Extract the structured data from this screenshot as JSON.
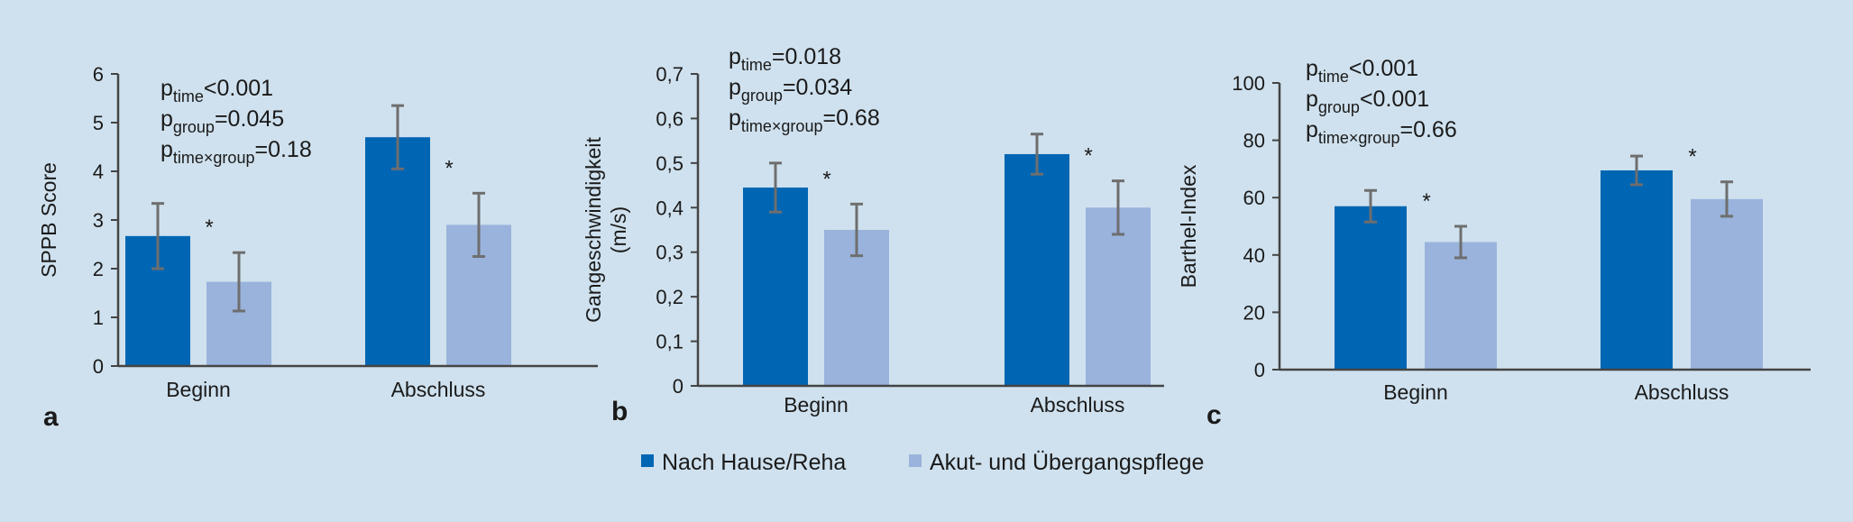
{
  "colors": {
    "background": "#cfe1ee",
    "nach_hause": "#0066b3",
    "akut": "#99b3dc",
    "errorbar": "#6e6e6e",
    "axis": "#444444"
  },
  "legend": {
    "items": [
      {
        "label": "Nach Hause/Reha",
        "color": "#0066b3"
      },
      {
        "label": "Akut- und Übergangspflege",
        "color": "#99b3dc"
      }
    ]
  },
  "chart_data": [
    {
      "panel": "a",
      "type": "bar",
      "ylabel_lines": [
        "SPPB Score"
      ],
      "categories": [
        "Beginn",
        "Abschluss"
      ],
      "ylim": [
        0,
        6
      ],
      "yticks": [
        "0",
        "1",
        "2",
        "3",
        "4",
        "5",
        "6"
      ],
      "series": [
        {
          "values": [
            2.67,
            4.7
          ],
          "errors": [
            0.67,
            0.65
          ]
        },
        {
          "values": [
            1.73,
            2.9
          ],
          "errors": [
            0.6,
            0.65
          ]
        }
      ],
      "significance": [
        {
          "category": 0,
          "text": "*"
        },
        {
          "category": 1,
          "text": "*"
        }
      ],
      "stats": [
        {
          "p": "p",
          "sub": "time",
          "rest": "<0.001"
        },
        {
          "p": "p",
          "sub": "group",
          "rest": "=0.045"
        },
        {
          "p": "p",
          "sub": "time×group",
          "rest": "=0.18"
        }
      ]
    },
    {
      "panel": "b",
      "type": "bar",
      "ylabel_lines": [
        "Gangeschwindigkeit",
        "(m/s)"
      ],
      "categories": [
        "Beginn",
        "Abschluss"
      ],
      "ylim": [
        0,
        0.7
      ],
      "yticks": [
        "0",
        "0,1",
        "0,2",
        "0,3",
        "0,4",
        "0,5",
        "0,6",
        "0,7"
      ],
      "series": [
        {
          "values": [
            0.445,
            0.52
          ],
          "errors": [
            0.055,
            0.045
          ]
        },
        {
          "values": [
            0.35,
            0.4
          ],
          "errors": [
            0.058,
            0.06
          ]
        }
      ],
      "significance": [
        {
          "category": 0,
          "text": "*"
        },
        {
          "category": 1,
          "text": "*"
        }
      ],
      "stats": [
        {
          "p": "p",
          "sub": "time",
          "rest": "=0.018"
        },
        {
          "p": "p",
          "sub": "group",
          "rest": "=0.034"
        },
        {
          "p": "p",
          "sub": "time×group",
          "rest": "=0.68"
        }
      ]
    },
    {
      "panel": "c",
      "type": "bar",
      "ylabel_lines": [
        "Barthel-Index"
      ],
      "categories": [
        "Beginn",
        "Abschluss"
      ],
      "ylim": [
        0,
        100
      ],
      "yticks": [
        "0",
        "20",
        "40",
        "60",
        "80",
        "100"
      ],
      "series": [
        {
          "values": [
            57,
            69.5
          ],
          "errors": [
            5.5,
            5
          ]
        },
        {
          "values": [
            44.5,
            59.5
          ],
          "errors": [
            5.5,
            6
          ]
        }
      ],
      "significance": [
        {
          "category": 0,
          "text": "*"
        },
        {
          "category": 1,
          "text": "*"
        }
      ],
      "stats": [
        {
          "p": "p",
          "sub": "time",
          "rest": "<0.001"
        },
        {
          "p": "p",
          "sub": "group",
          "rest": "<0.001"
        },
        {
          "p": "p",
          "sub": "time×group",
          "rest": "=0.66"
        }
      ]
    }
  ]
}
